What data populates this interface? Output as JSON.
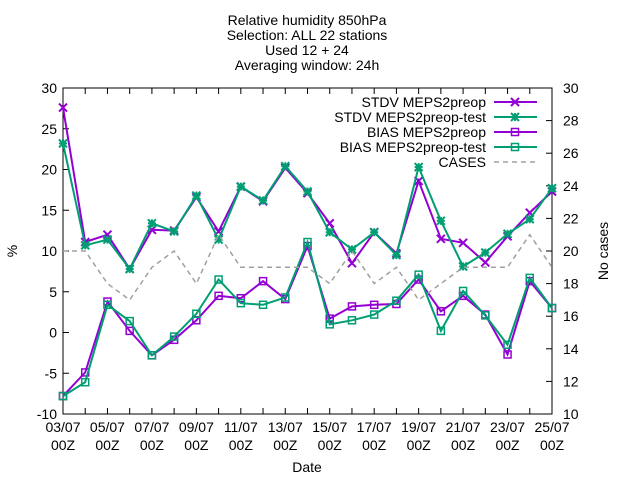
{
  "chart_data": {
    "type": "line",
    "title_lines": [
      "Relative humidity 850hPa",
      "Selection: ALL      22 stations",
      "Used 12 + 24",
      "Averaging window: 24h"
    ],
    "xlabel": "Date",
    "ylabel": "%",
    "y2label": "No cases",
    "x_tick_labels": [
      {
        "index": 0,
        "line1": "03/07",
        "line2": "00Z"
      },
      {
        "index": 2,
        "line1": "05/07",
        "line2": "00Z"
      },
      {
        "index": 4,
        "line1": "07/07",
        "line2": "00Z"
      },
      {
        "index": 6,
        "line1": "09/07",
        "line2": "00Z"
      },
      {
        "index": 8,
        "line1": "11/07",
        "line2": "00Z"
      },
      {
        "index": 10,
        "line1": "13/07",
        "line2": "00Z"
      },
      {
        "index": 12,
        "line1": "15/07",
        "line2": "00Z"
      },
      {
        "index": 14,
        "line1": "17/07",
        "line2": "00Z"
      },
      {
        "index": 16,
        "line1": "19/07",
        "line2": "00Z"
      },
      {
        "index": 18,
        "line1": "21/07",
        "line2": "00Z"
      },
      {
        "index": 20,
        "line1": "23/07",
        "line2": "00Z"
      },
      {
        "index": 22,
        "line1": "25/07",
        "line2": "00Z"
      }
    ],
    "xlim": [
      0,
      22
    ],
    "ylim": [
      -10,
      30
    ],
    "yticks": [
      -10,
      -5,
      0,
      5,
      10,
      15,
      20,
      25,
      30
    ],
    "y2lim": [
      10,
      30
    ],
    "y2ticks": [
      10,
      12,
      14,
      16,
      18,
      20,
      22,
      24,
      26,
      28,
      30
    ],
    "grid": false,
    "legend_position": "top-right",
    "series": [
      {
        "name": "STDV MEPS2preop",
        "axis": "y1",
        "color": "#9400d3",
        "marker": "x",
        "values": [
          27.6,
          11.1,
          12.0,
          7.8,
          12.6,
          12.5,
          16.6,
          12.4,
          17.9,
          16.1,
          20.2,
          17.1,
          13.4,
          8.5,
          12.3,
          9.7,
          18.6,
          11.5,
          11.0,
          8.6,
          11.8,
          14.7,
          17.3
        ]
      },
      {
        "name": "STDV MEPS2preop-test",
        "axis": "y1",
        "color": "#009e73",
        "marker": "*",
        "values": [
          23.2,
          10.7,
          11.4,
          7.8,
          13.4,
          12.4,
          16.8,
          11.4,
          17.9,
          16.2,
          20.4,
          17.3,
          12.3,
          10.2,
          12.3,
          9.5,
          20.3,
          13.7,
          8.1,
          9.8,
          12.1,
          13.9,
          17.7
        ]
      },
      {
        "name": "BIAS MEPS2preop",
        "axis": "y1",
        "color": "#9400d3",
        "marker": "square",
        "values": [
          -7.8,
          -4.9,
          3.8,
          0.2,
          -2.8,
          -0.9,
          1.5,
          4.5,
          4.2,
          6.3,
          4.1,
          10.6,
          1.7,
          3.2,
          3.4,
          3.5,
          6.5,
          2.6,
          4.5,
          2.2,
          -2.7,
          6.3,
          3.0
        ]
      },
      {
        "name": "BIAS MEPS2preop-test",
        "axis": "y1",
        "color": "#009e73",
        "marker": "square",
        "values": [
          -7.8,
          -6.1,
          3.4,
          1.4,
          -2.8,
          -0.5,
          2.3,
          6.5,
          3.6,
          3.4,
          4.3,
          11.1,
          1.0,
          1.5,
          2.2,
          3.9,
          7.1,
          0.2,
          5.1,
          2.1,
          -1.5,
          6.7,
          3.0
        ]
      },
      {
        "name": "CASES",
        "axis": "y2",
        "color": "#a0a0a0",
        "dash": "dashed",
        "values": [
          20,
          20,
          18,
          17,
          19,
          20,
          18,
          21,
          19,
          19,
          19,
          19,
          18,
          20,
          18,
          19,
          17,
          18,
          19,
          19,
          19,
          21,
          19
        ]
      }
    ]
  }
}
